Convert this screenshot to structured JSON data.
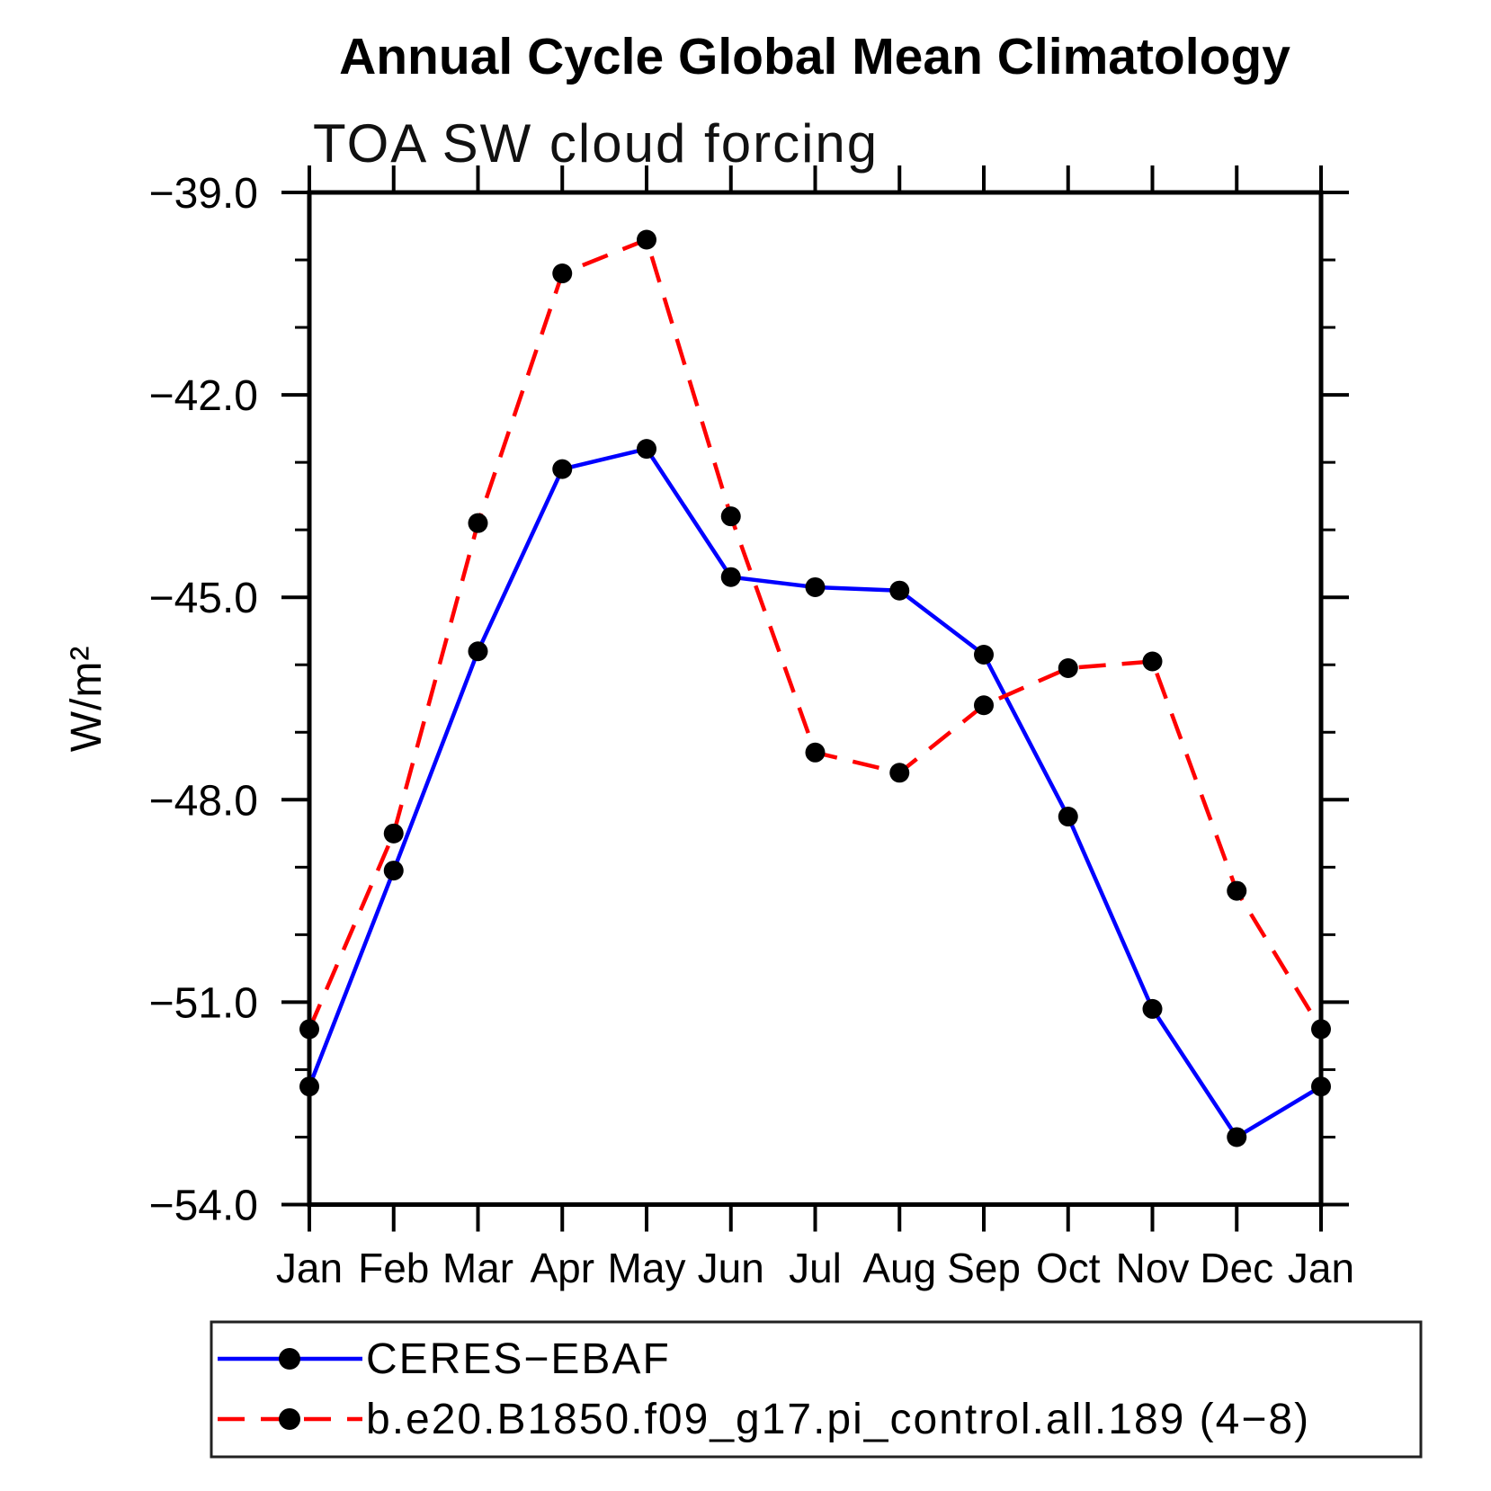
{
  "page": {
    "background": "#ffffff"
  },
  "chart_data": {
    "type": "line",
    "title": "Annual Cycle Global Mean Climatology",
    "subtitle": "TOA SW cloud forcing",
    "ylabel": "W/m²",
    "xlabel": "",
    "categories": [
      "Jan",
      "Feb",
      "Mar",
      "Apr",
      "May",
      "Jun",
      "Jul",
      "Aug",
      "Sep",
      "Oct",
      "Nov",
      "Dec",
      "Jan"
    ],
    "series": [
      {
        "name": "CERES−EBAF",
        "color": "#0000ff",
        "line_style": "solid",
        "marker": "filled-circle",
        "marker_color": "#000000",
        "values": [
          -52.25,
          -49.05,
          -45.8,
          -43.1,
          -42.8,
          -44.7,
          -44.85,
          -44.9,
          -45.85,
          -48.25,
          -51.1,
          -53.0,
          -52.25
        ]
      },
      {
        "name": "b.e20.B1850.f09_g17.pi_control.all.189 (4−8)",
        "color": "#ff0000",
        "line_style": "dashed",
        "marker": "filled-circle",
        "marker_color": "#000000",
        "values": [
          -51.4,
          -48.5,
          -43.9,
          -40.2,
          -39.7,
          -43.8,
          -47.3,
          -47.6,
          -46.6,
          -46.05,
          -45.95,
          -49.35,
          -51.4
        ]
      }
    ],
    "ylim": [
      -54.0,
      -39.0
    ],
    "ytick_major": [
      -39.0,
      -42.0,
      -45.0,
      -48.0,
      -51.0,
      -54.0
    ],
    "ytick_labels": [
      "−39.0",
      "−42.0",
      "−45.0",
      "−48.0",
      "−51.0",
      "−54.0"
    ],
    "ytick_minor_step": 1.0,
    "grid": false,
    "frame": true,
    "legend_position": "bottom-left"
  }
}
